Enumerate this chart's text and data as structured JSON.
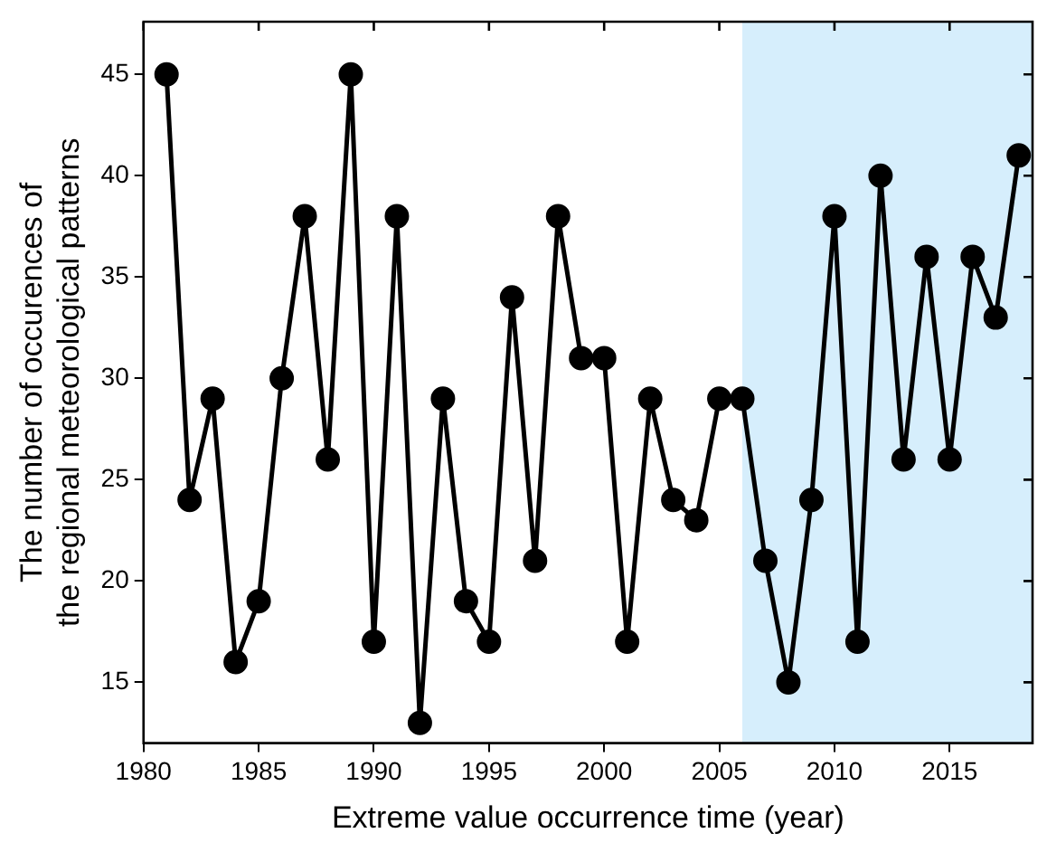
{
  "chart_data": {
    "type": "line",
    "xlabel": "Extreme value occurrence time (year)",
    "ylabel": "The number of occurences of\nthe regional meteorological patterns",
    "x": [
      1981,
      1982,
      1983,
      1984,
      1985,
      1986,
      1987,
      1988,
      1989,
      1990,
      1991,
      1992,
      1993,
      1994,
      1995,
      1996,
      1997,
      1998,
      1999,
      2000,
      2001,
      2002,
      2003,
      2004,
      2005,
      2006,
      2007,
      2008,
      2009,
      2010,
      2011,
      2012,
      2013,
      2014,
      2015,
      2016,
      2017,
      2018
    ],
    "series": [
      {
        "color": "#000000",
        "values": [
          45,
          24,
          29,
          16,
          19,
          30,
          38,
          26,
          45,
          17,
          38,
          13,
          29,
          19,
          17,
          34,
          21,
          38,
          31,
          31,
          17,
          29,
          24,
          23,
          29,
          29,
          21,
          15,
          24,
          38,
          17,
          40,
          26,
          36,
          26,
          36,
          33,
          41
        ]
      }
    ],
    "xlim": [
      1980,
      2018.6
    ],
    "xticks": [
      1980,
      1985,
      1990,
      1995,
      2000,
      2005,
      2010,
      2015
    ],
    "ylim": [
      12,
      47.6
    ],
    "yticks": [
      15,
      20,
      25,
      30,
      35,
      40,
      45
    ],
    "bands": [
      {
        "axis": "x",
        "from": 2006,
        "to": 2018.6,
        "color": "#d6eefc"
      }
    ],
    "marker": "circle",
    "line_style": "solid",
    "grid": false,
    "legend": false
  }
}
